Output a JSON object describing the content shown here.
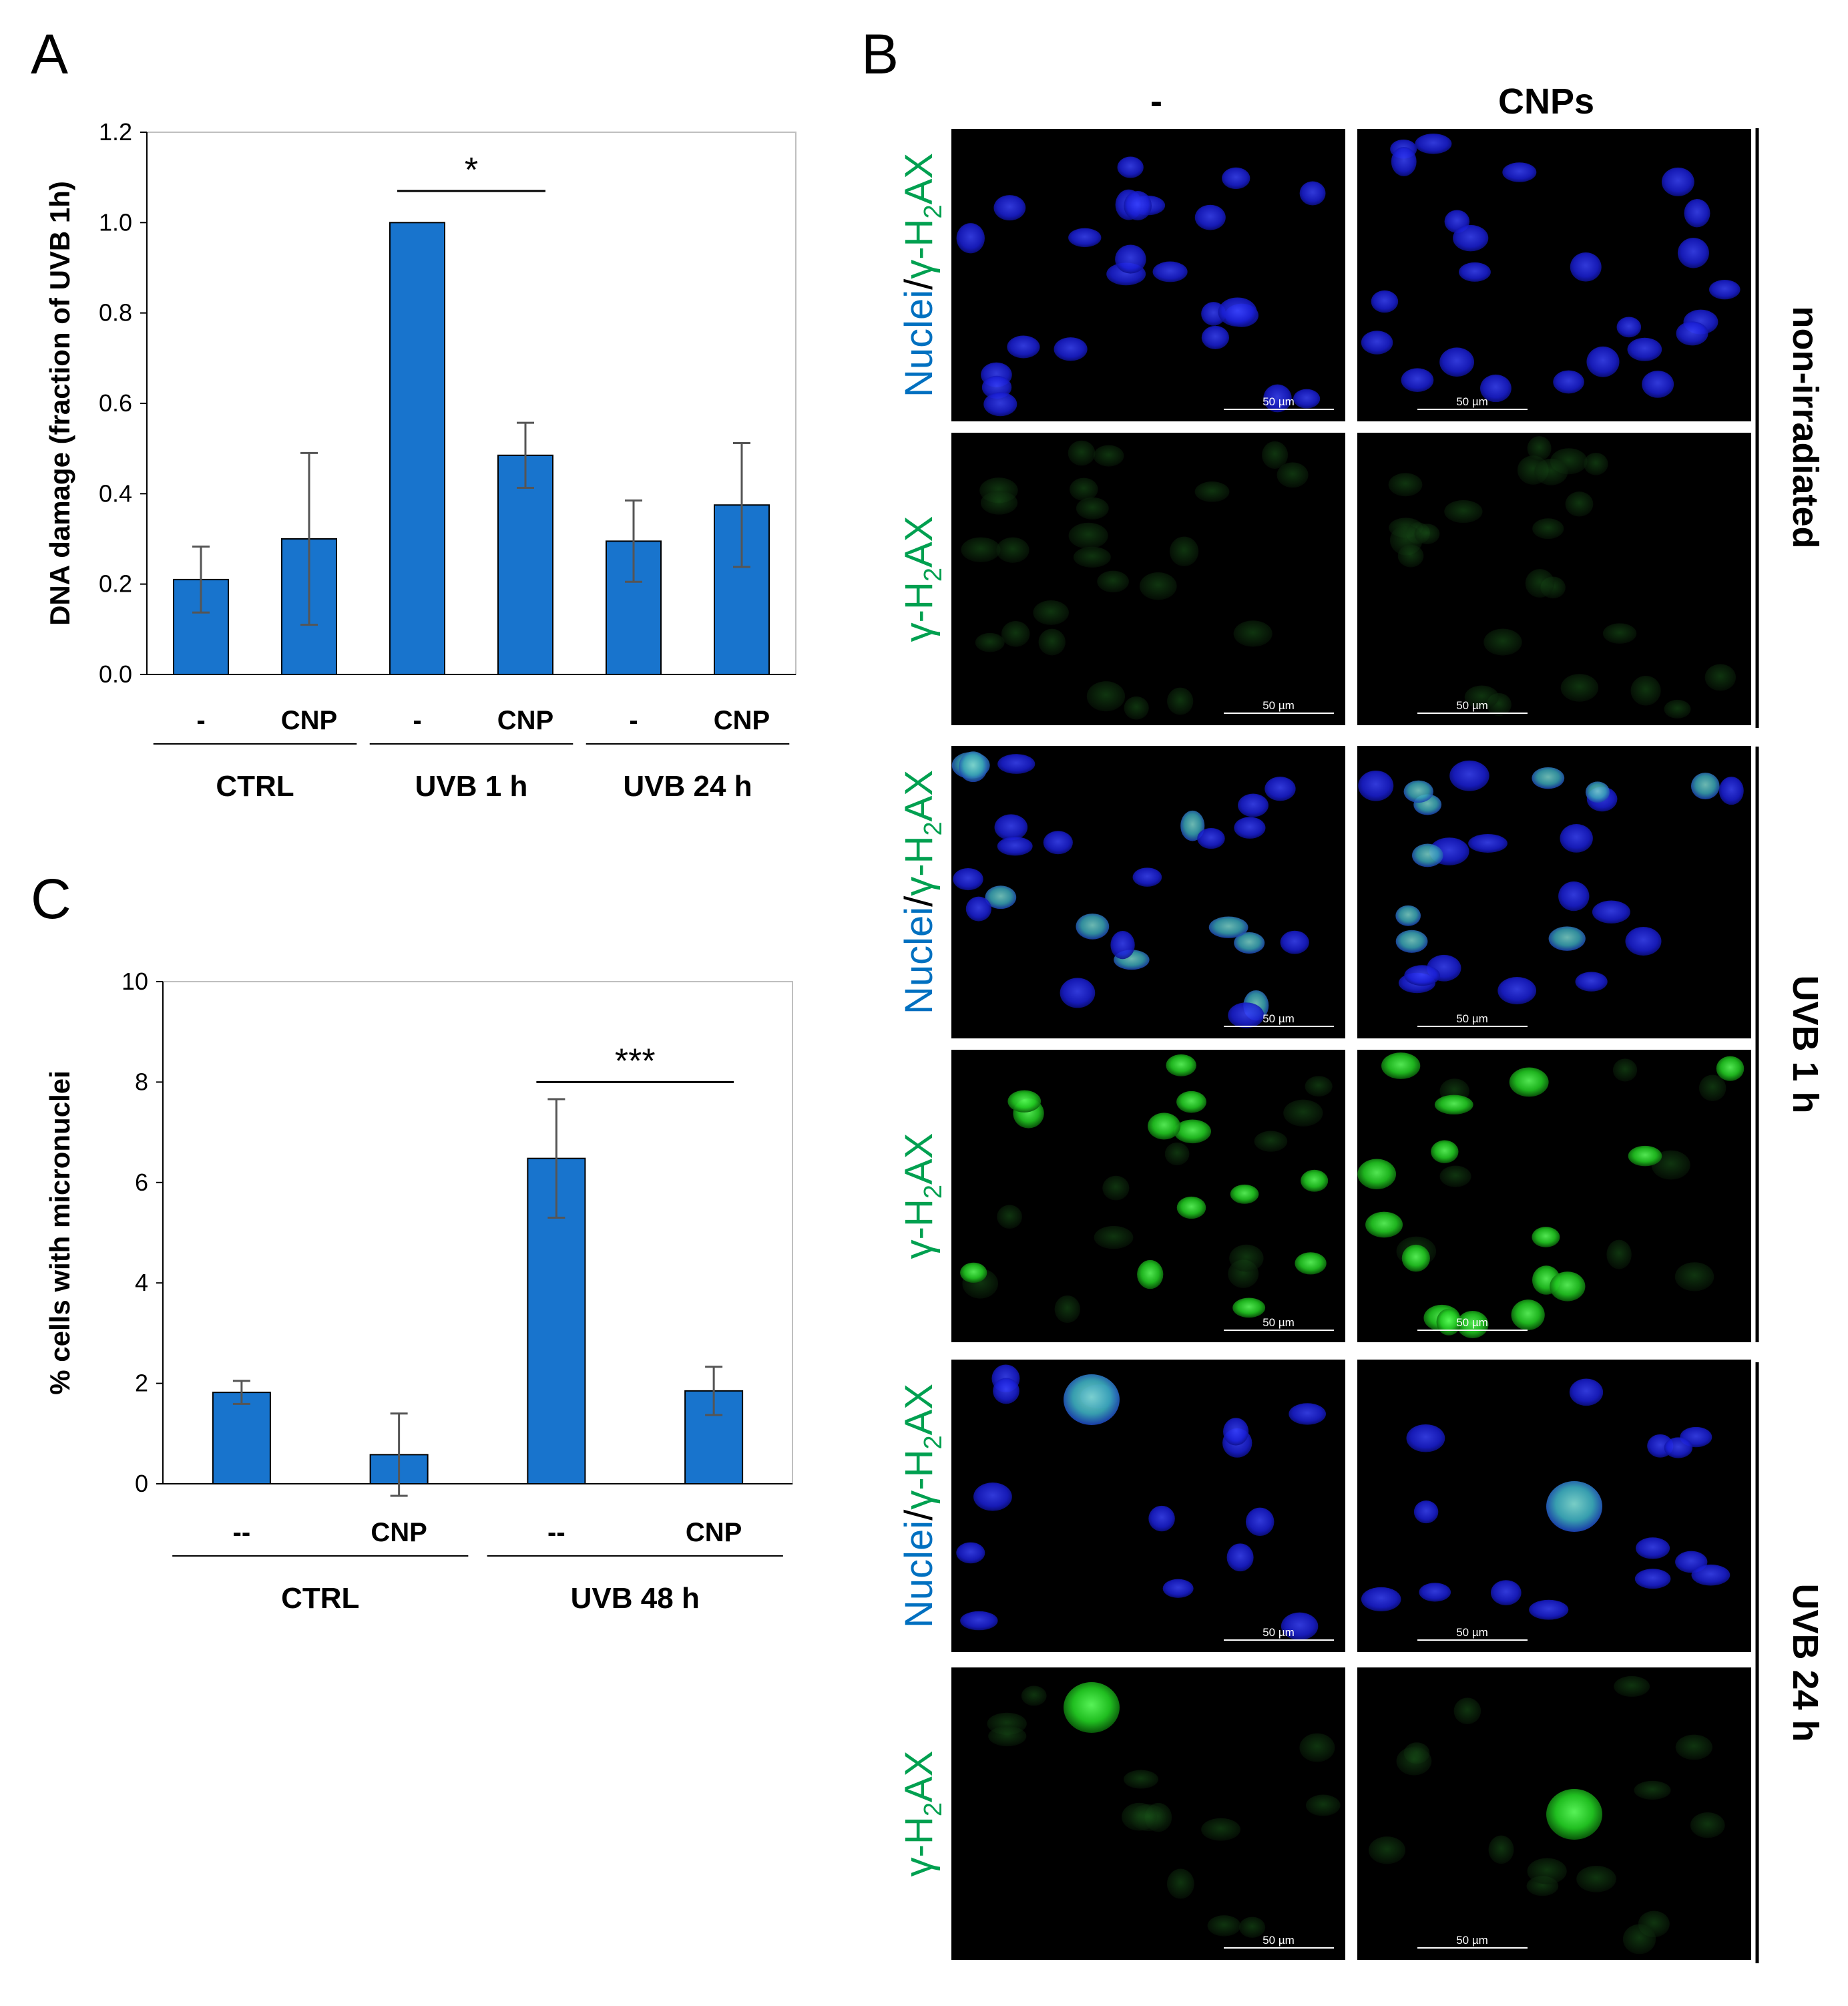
{
  "panels": {
    "A": "A",
    "B": "B",
    "C": "C"
  },
  "colors": {
    "bar": "#1874cd",
    "bar_stroke": "#000000",
    "error": "#555555",
    "blue_channel": "#0070c0",
    "green_channel": "#00a050"
  },
  "chart_data": [
    {
      "type": "bar",
      "panel": "A",
      "ylabel": "DNA damage (fraction of UVB 1h)",
      "ylim": [
        0,
        1.2
      ],
      "yticks": [
        "0.0",
        "0.2",
        "0.4",
        "0.6",
        "0.8",
        "1.0",
        "1.2"
      ],
      "categories": [
        "-",
        "CNP",
        "-",
        "CNP",
        "-",
        "CNP"
      ],
      "values": [
        0.21,
        0.3,
        1.0,
        0.485,
        0.295,
        0.375
      ],
      "errors": [
        0.073,
        0.19,
        0.0,
        0.072,
        0.09,
        0.137
      ],
      "groups": [
        {
          "label": "CTRL",
          "span": [
            0,
            1
          ]
        },
        {
          "label": "UVB 1 h",
          "span": [
            2,
            3
          ]
        },
        {
          "label": "UVB 24 h",
          "span": [
            4,
            5
          ]
        }
      ],
      "significance": [
        {
          "from": 2,
          "to": 3,
          "label": "*",
          "y": 1.07
        }
      ],
      "grid": false
    },
    {
      "type": "bar",
      "panel": "C",
      "ylabel": "% cells with micronuclei",
      "ylim": [
        0,
        10
      ],
      "yticks": [
        "0",
        "2",
        "4",
        "6",
        "8",
        "10"
      ],
      "categories": [
        "--",
        "CNP",
        "--",
        "CNP"
      ],
      "values": [
        1.82,
        0.58,
        6.48,
        1.85
      ],
      "errors": [
        0.23,
        0.82,
        1.18,
        0.48
      ],
      "groups": [
        {
          "label": "CTRL",
          "span": [
            0,
            1
          ]
        },
        {
          "label": "UVB 48 h",
          "span": [
            2,
            3
          ]
        }
      ],
      "significance": [
        {
          "from": 2,
          "to": 3,
          "label": "***",
          "y": 8.0
        }
      ],
      "grid": false
    }
  ],
  "micrographs": {
    "columns": [
      "-",
      "CNPs"
    ],
    "conditions": [
      "non-irradiated",
      "UVB 1 h",
      "UVB 24 h"
    ],
    "merge_label": {
      "nuclei": "Nuclei",
      "sep": "/",
      "gamma": "γ-H",
      "sub": "2",
      "ax": "AX"
    },
    "green_label": {
      "gamma": "γ-H",
      "sub": "2",
      "ax": "AX"
    },
    "scale_bar": "50 µm"
  }
}
